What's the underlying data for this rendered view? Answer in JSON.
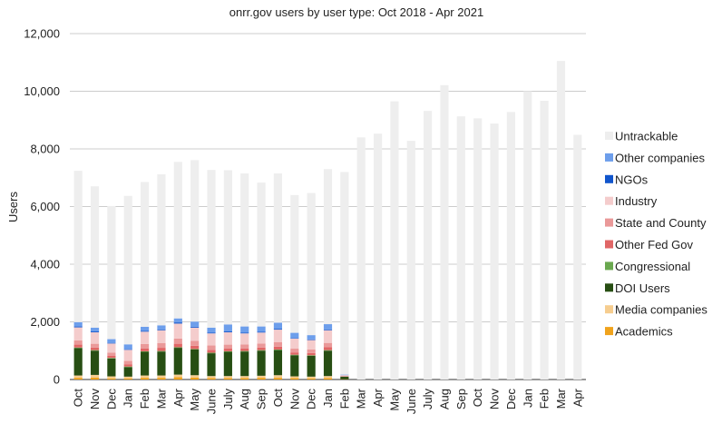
{
  "chart_data": {
    "type": "bar",
    "stacked": true,
    "title": "onrr.gov users by user type: Oct 2018 - Apr 2021",
    "xlabel": "",
    "ylabel": "Users",
    "ylim": [
      0,
      12000
    ],
    "yticks": [
      0,
      2000,
      4000,
      6000,
      8000,
      10000,
      12000
    ],
    "ytick_labels": [
      "0",
      "2,000",
      "4,000",
      "6,000",
      "8,000",
      "10,000",
      "12,000"
    ],
    "grid": true,
    "legend_position": "right",
    "categories": [
      "Oct",
      "Nov",
      "Dec",
      "Jan",
      "Feb",
      "Mar",
      "Apr",
      "May",
      "June",
      "July",
      "Aug",
      "Sep",
      "Oct",
      "Nov",
      "Dec",
      "Jan",
      "Feb",
      "Mar",
      "Apr",
      "May",
      "June",
      "July",
      "Aug",
      "Sep",
      "Oct",
      "Nov",
      "Dec",
      "Jan",
      "Feb",
      "Mar",
      "Apr"
    ],
    "series": [
      {
        "name": "Academics",
        "color": "#f0a31c",
        "values": [
          60,
          70,
          40,
          40,
          60,
          60,
          80,
          70,
          50,
          50,
          50,
          60,
          60,
          50,
          40,
          50,
          10,
          0,
          0,
          0,
          0,
          0,
          0,
          0,
          0,
          0,
          0,
          0,
          0,
          0,
          0
        ]
      },
      {
        "name": "Media companies",
        "color": "#f6cd8f",
        "values": [
          80,
          90,
          70,
          60,
          80,
          80,
          90,
          80,
          70,
          70,
          70,
          70,
          90,
          60,
          60,
          70,
          0,
          0,
          0,
          0,
          0,
          0,
          0,
          0,
          0,
          0,
          0,
          0,
          0,
          0,
          0
        ]
      },
      {
        "name": "DOI Users",
        "color": "#274e13",
        "values": [
          950,
          840,
          620,
          330,
          820,
          830,
          930,
          890,
          790,
          840,
          850,
          870,
          870,
          730,
          720,
          880,
          90,
          0,
          0,
          0,
          0,
          0,
          0,
          0,
          0,
          0,
          0,
          0,
          0,
          0,
          0
        ]
      },
      {
        "name": "Congressional",
        "color": "#6aa84f",
        "values": [
          20,
          20,
          20,
          20,
          20,
          20,
          20,
          20,
          20,
          20,
          20,
          20,
          20,
          20,
          20,
          20,
          0,
          0,
          0,
          0,
          0,
          0,
          0,
          0,
          0,
          0,
          0,
          0,
          0,
          0,
          0
        ]
      },
      {
        "name": "Other Fed Gov",
        "color": "#e06666",
        "values": [
          100,
          90,
          70,
          80,
          100,
          110,
          120,
          110,
          100,
          90,
          90,
          90,
          100,
          80,
          80,
          100,
          10,
          0,
          0,
          0,
          0,
          0,
          0,
          0,
          0,
          0,
          0,
          0,
          0,
          0,
          0
        ]
      },
      {
        "name": "State and County",
        "color": "#ea9999",
        "values": [
          150,
          130,
          110,
          120,
          150,
          160,
          180,
          170,
          150,
          140,
          140,
          140,
          160,
          130,
          120,
          150,
          10,
          0,
          0,
          0,
          0,
          0,
          0,
          0,
          0,
          0,
          0,
          0,
          0,
          0,
          0
        ]
      },
      {
        "name": "Industry",
        "color": "#f4cccc",
        "values": [
          450,
          400,
          320,
          380,
          430,
          450,
          520,
          460,
          420,
          430,
          380,
          380,
          430,
          350,
          330,
          440,
          30,
          0,
          0,
          0,
          0,
          0,
          0,
          0,
          0,
          0,
          0,
          0,
          0,
          0,
          0
        ]
      },
      {
        "name": "NGOs",
        "color": "#1155cc",
        "values": [
          30,
          30,
          20,
          20,
          30,
          30,
          40,
          30,
          30,
          30,
          30,
          30,
          30,
          20,
          20,
          30,
          0,
          0,
          0,
          0,
          0,
          0,
          0,
          0,
          0,
          0,
          0,
          0,
          0,
          0,
          0
        ]
      },
      {
        "name": "Other companies",
        "color": "#6d9eeb",
        "values": [
          150,
          130,
          130,
          170,
          140,
          140,
          140,
          180,
          170,
          240,
          210,
          180,
          210,
          180,
          150,
          180,
          20,
          0,
          0,
          0,
          0,
          0,
          0,
          0,
          0,
          0,
          0,
          0,
          0,
          0,
          0
        ]
      },
      {
        "name": "Untrackable",
        "color": "#eeeeee",
        "values": [
          5250,
          4900,
          4620,
          5150,
          5020,
          5240,
          5430,
          5600,
          5470,
          5350,
          5310,
          4990,
          5180,
          4780,
          4930,
          5380,
          7030,
          8400,
          8530,
          9650,
          8280,
          9320,
          10210,
          9130,
          9060,
          8880,
          9280,
          10000,
          9670,
          11050,
          8490
        ]
      }
    ]
  }
}
